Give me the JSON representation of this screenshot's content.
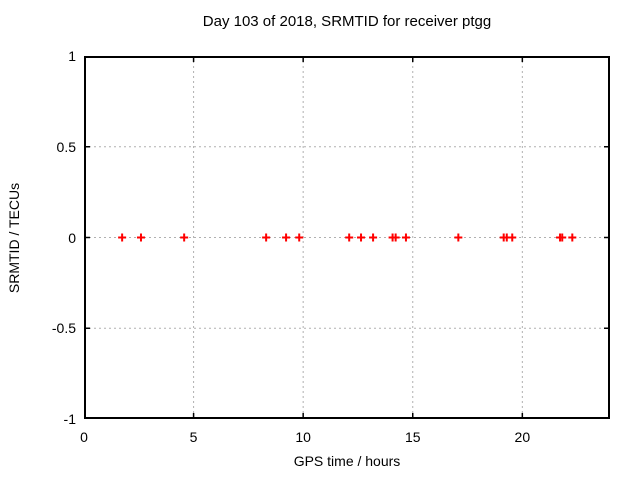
{
  "chart_data": {
    "type": "scatter",
    "title": "Day 103 of 2018, SRMTID for receiver ptgg",
    "xlabel": "GPS time / hours",
    "ylabel": "SRMTID / TECUs",
    "xlim": [
      0,
      24
    ],
    "ylim": [
      -1,
      1
    ],
    "xticks": [
      0,
      5,
      10,
      15,
      20
    ],
    "xtick_labels": [
      "0",
      "5",
      "10",
      "15",
      "20"
    ],
    "yticks": [
      -1,
      -0.5,
      0,
      0.5,
      1
    ],
    "ytick_labels": [
      "-1",
      "-0.5",
      "0",
      "0.5",
      "1"
    ],
    "grid": true,
    "legend_position": "none",
    "series": [
      {
        "name": "SRMTID",
        "marker": "plus",
        "color": "#ff0000",
        "x": [
          1.74,
          2.6,
          4.57,
          8.31,
          9.22,
          9.82,
          12.1,
          12.64,
          13.19,
          14.08,
          14.22,
          14.69,
          17.08,
          19.15,
          19.29,
          19.54,
          21.72,
          21.82,
          22.28
        ],
        "y": [
          0,
          0,
          0,
          0,
          0,
          0,
          0,
          0,
          0,
          0,
          0,
          0,
          0,
          0,
          0,
          0,
          0,
          0,
          0
        ]
      }
    ],
    "colors": {
      "marker": "#ff0000",
      "grid": "#b0b0b0",
      "axis": "#000000",
      "background": "#ffffff"
    }
  }
}
